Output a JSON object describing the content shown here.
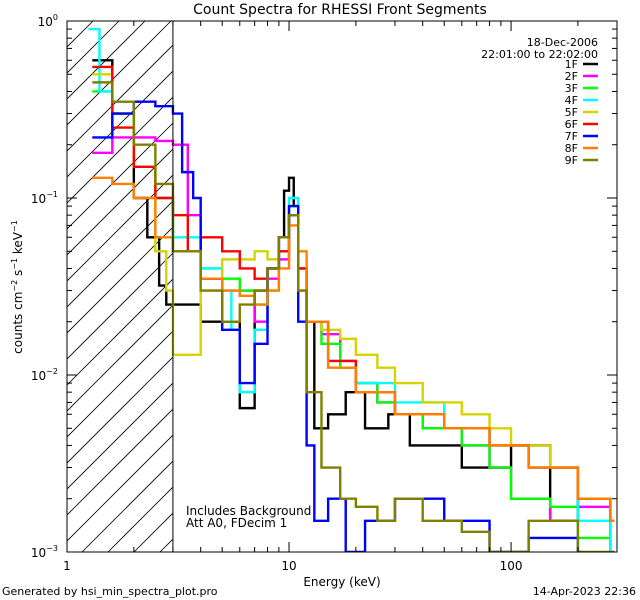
{
  "chart_data": {
    "type": "line",
    "title": "Count Spectra for RHESSI Front Segments",
    "xlabel": "Energy (keV)",
    "ylabel_parts": [
      "counts cm",
      "−2",
      " s",
      "−1",
      " keV",
      "−1"
    ],
    "xscale": "log",
    "yscale": "log",
    "xlim": [
      1,
      300
    ],
    "ylim": [
      0.001,
      1
    ],
    "x_ticks": [
      {
        "value": 1,
        "label": "1"
      },
      {
        "value": 10,
        "label": "10"
      },
      {
        "value": 100,
        "label": "100"
      }
    ],
    "y_ticks": [
      {
        "value": 0.001,
        "base": "10",
        "exp": "−3"
      },
      {
        "value": 0.01,
        "base": "10",
        "exp": "−2"
      },
      {
        "value": 0.1,
        "base": "10",
        "exp": "−1"
      },
      {
        "value": 1,
        "base": "10",
        "exp": "0"
      }
    ],
    "hatch_region_max_keV": 3,
    "legend_header": [
      "18-Dec-2006",
      "22:01:00 to 22:02:00"
    ],
    "annotations": [
      "Includes Background",
      "Att A0, FDecim 1"
    ],
    "series": [
      {
        "name": "1F",
        "color": "#000000",
        "x": [
          1.3,
          1.6,
          2.0,
          2.3,
          2.6,
          2.8,
          3.2,
          4.0,
          5.0,
          6.0,
          7.0,
          8.0,
          9.0,
          9.5,
          10.0,
          10.5,
          11.0,
          12.0,
          13.0,
          15.0,
          18.0,
          22.0,
          28.0,
          35.0,
          45.0,
          60.0,
          80.0,
          100.0,
          150.0,
          200.0,
          280.0
        ],
        "y": [
          0.6,
          0.3,
          0.1,
          0.06,
          0.032,
          0.025,
          0.025,
          0.02,
          0.02,
          0.0065,
          0.03,
          0.04,
          0.06,
          0.11,
          0.13,
          0.09,
          0.04,
          0.02,
          0.005,
          0.006,
          0.008,
          0.005,
          0.006,
          0.004,
          0.004,
          0.003,
          0.003,
          0.004,
          0.0015,
          0.002,
          0.001
        ]
      },
      {
        "name": "2F",
        "color": "#ff00ff",
        "x": [
          1.3,
          1.6,
          2.0,
          2.5,
          3.0,
          3.5,
          4.0,
          5.0,
          6.0,
          7.0,
          8.0,
          9.0,
          10.0,
          11.0,
          12.0,
          14.0,
          17.0,
          20.0,
          25.0,
          30.0,
          40.0,
          60.0,
          80.0,
          100.0,
          150.0,
          200.0,
          280.0
        ],
        "y": [
          0.18,
          0.22,
          0.22,
          0.21,
          0.2,
          0.08,
          0.035,
          0.03,
          0.03,
          0.02,
          0.035,
          0.045,
          0.08,
          0.03,
          0.02,
          0.017,
          0.012,
          0.009,
          0.007,
          0.006,
          0.005,
          0.004,
          0.003,
          0.002,
          0.0015,
          0.0018,
          0.001
        ]
      },
      {
        "name": "3F",
        "color": "#00ff00",
        "x": [
          1.3,
          1.6,
          2.0,
          2.5,
          3.0,
          4.0,
          5.0,
          6.0,
          7.0,
          8.0,
          9.0,
          10.0,
          11.0,
          12.0,
          14.0,
          17.0,
          20.0,
          25.0,
          30.0,
          40.0,
          60.0,
          80.0,
          100.0,
          150.0,
          200.0,
          280.0
        ],
        "y": [
          0.4,
          0.3,
          0.15,
          0.1,
          0.05,
          0.04,
          0.035,
          0.03,
          0.025,
          0.03,
          0.05,
          0.09,
          0.04,
          0.02,
          0.015,
          0.011,
          0.009,
          0.007,
          0.006,
          0.005,
          0.004,
          0.003,
          0.002,
          0.0018,
          0.0012,
          0.001
        ]
      },
      {
        "name": "4F",
        "color": "#00ffff",
        "x": [
          1.25,
          1.4,
          1.6,
          2.0,
          2.5,
          3.0,
          4.0,
          5.0,
          5.5,
          6.0,
          7.0,
          8.0,
          9.0,
          10.0,
          11.0,
          12.0,
          15.0,
          20.0,
          30.0,
          50.0,
          80.0,
          120.0,
          200.0,
          280.0
        ],
        "y": [
          0.9,
          0.4,
          0.35,
          0.15,
          0.1,
          0.06,
          0.04,
          0.03,
          0.018,
          0.008,
          0.018,
          0.04,
          0.06,
          0.1,
          0.04,
          0.02,
          0.012,
          0.009,
          0.007,
          0.005,
          0.004,
          0.003,
          0.0015,
          0.001
        ]
      },
      {
        "name": "5F",
        "color": "#d4d400",
        "x": [
          1.3,
          1.6,
          2.0,
          2.5,
          2.8,
          3.0,
          4.0,
          5.0,
          6.0,
          7.0,
          8.0,
          9.0,
          10.0,
          11.0,
          12.0,
          14.0,
          17.0,
          20.0,
          25.0,
          30.0,
          40.0,
          60.0,
          80.0,
          100.0,
          150.0,
          200.0,
          280.0
        ],
        "y": [
          0.5,
          0.3,
          0.15,
          0.05,
          0.03,
          0.013,
          0.03,
          0.045,
          0.045,
          0.05,
          0.045,
          0.06,
          0.09,
          0.03,
          0.02,
          0.018,
          0.016,
          0.013,
          0.011,
          0.009,
          0.007,
          0.006,
          0.005,
          0.004,
          0.003,
          0.002,
          0.0015
        ]
      },
      {
        "name": "6F",
        "color": "#ff0000",
        "x": [
          1.3,
          1.6,
          2.0,
          2.5,
          3.0,
          3.5,
          4.0,
          5.0,
          6.0,
          7.0,
          8.0,
          9.0,
          10.0,
          11.0,
          12.0,
          15.0,
          20.0,
          30.0,
          50.0,
          80.0,
          120.0,
          200.0,
          280.0
        ],
        "y": [
          0.55,
          0.25,
          0.15,
          0.1,
          0.08,
          0.05,
          0.06,
          0.05,
          0.04,
          0.035,
          0.04,
          0.05,
          0.08,
          0.04,
          0.02,
          0.012,
          0.008,
          0.006,
          0.005,
          0.004,
          0.003,
          0.002,
          0.0015
        ]
      },
      {
        "name": "7F",
        "color": "#0000ff",
        "x": [
          1.3,
          1.6,
          2.0,
          2.5,
          3.0,
          3.3,
          3.7,
          4.0,
          5.0,
          6.0,
          7.0,
          8.0,
          9.0,
          10.0,
          11.0,
          12.0,
          13.0,
          15.0,
          18.0,
          22.0,
          30.0,
          50.0,
          80.0,
          120.0,
          200.0
        ],
        "y": [
          0.22,
          0.3,
          0.35,
          0.33,
          0.3,
          0.14,
          0.1,
          0.035,
          0.018,
          0.009,
          0.015,
          0.04,
          0.06,
          0.09,
          0.02,
          0.004,
          0.0015,
          0.002,
          0.001,
          0.0015,
          0.002,
          0.0015,
          0.001,
          0.0012,
          0.001
        ]
      },
      {
        "name": "8F",
        "color": "#ff8000",
        "x": [
          1.3,
          1.6,
          2.0,
          2.5,
          3.0,
          4.0,
          5.0,
          6.0,
          7.0,
          8.0,
          9.0,
          10.0,
          11.0,
          12.0,
          15.0,
          20.0,
          30.0,
          50.0,
          80.0,
          120.0,
          200.0,
          280.0
        ],
        "y": [
          0.13,
          0.12,
          0.1,
          0.06,
          0.05,
          0.035,
          0.03,
          0.028,
          0.025,
          0.03,
          0.04,
          0.07,
          0.05,
          0.02,
          0.011,
          0.008,
          0.006,
          0.005,
          0.004,
          0.003,
          0.002,
          0.0015
        ]
      },
      {
        "name": "9F",
        "color": "#808000",
        "x": [
          1.3,
          1.6,
          2.0,
          2.5,
          3.0,
          4.0,
          5.0,
          6.0,
          7.0,
          8.0,
          9.0,
          10.0,
          11.0,
          12.0,
          14.0,
          17.0,
          20.0,
          25.0,
          30.0,
          40.0,
          60.0,
          80.0,
          120.0,
          200.0,
          280.0
        ],
        "y": [
          0.45,
          0.35,
          0.2,
          0.12,
          0.05,
          0.03,
          0.02,
          0.025,
          0.03,
          0.04,
          0.06,
          0.08,
          0.03,
          0.008,
          0.003,
          0.002,
          0.0018,
          0.0015,
          0.002,
          0.0015,
          0.0013,
          0.001,
          0.0015,
          0.001,
          0.001
        ]
      }
    ]
  },
  "footer": {
    "generated_by": "Generated by hsi_min_spectra_plot.pro",
    "date": "14-Apr-2023 22:36"
  }
}
